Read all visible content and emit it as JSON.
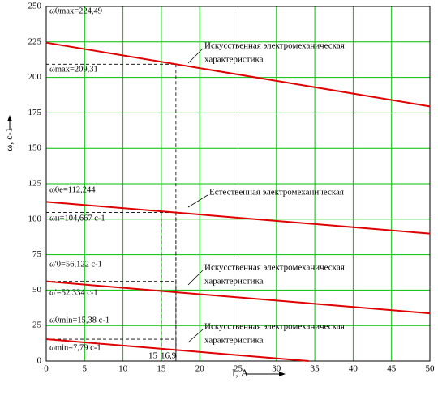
{
  "chart_data": {
    "type": "line",
    "x_label": "I, А",
    "y_label": "ω, с-1",
    "xlim": [
      0,
      50
    ],
    "ylim": [
      0,
      250
    ],
    "xticks": [
      0,
      5,
      10,
      15,
      20,
      25,
      30,
      35,
      40,
      45,
      50
    ],
    "yticks": [
      0,
      25,
      50,
      75,
      100,
      125,
      150,
      175,
      200,
      225,
      250
    ],
    "grid": true,
    "grid_color": "#00c000",
    "series": [
      {
        "name": [
          "Искусственная электромеханическая",
          "характеристика"
        ],
        "color": "#e00000",
        "x": [
          0,
          50
        ],
        "values": [
          224.49,
          179.6
        ]
      },
      {
        "name": [
          "Естественная электромеханическая"
        ],
        "color": "#e00000",
        "x": [
          0,
          50
        ],
        "values": [
          112.244,
          89.8
        ]
      },
      {
        "name": [
          "Искусственная электромеханическая",
          "характеристика"
        ],
        "color": "#e00000",
        "x": [
          0,
          50
        ],
        "values": [
          56.122,
          33.6
        ]
      },
      {
        "name": [
          "Искусственная электромеханическая",
          "характеристика"
        ],
        "color": "#e00000",
        "x": [
          0,
          34.2
        ],
        "values": [
          15.38,
          0
        ]
      }
    ],
    "annotations": [
      "ω0max=224,49",
      "ωmax=209,31",
      "ω0e=112,244",
      "ωн=104,667 с-1",
      "ω'0=56,122 с-1",
      "ω'=52,334 с-1",
      "ω0min=15,38 с-1",
      "ωmin=7,79 с-1"
    ],
    "guides": [
      {
        "x": 16.9,
        "y": 209.31
      },
      {
        "x": 16.9,
        "y": 104.667
      },
      {
        "x": 16.9,
        "y": 56.122
      },
      {
        "x": 16.9,
        "y": 15.38
      },
      {
        "x": 15,
        "y": 104.667
      }
    ],
    "guide_labels": [
      "15",
      "16,9"
    ]
  }
}
